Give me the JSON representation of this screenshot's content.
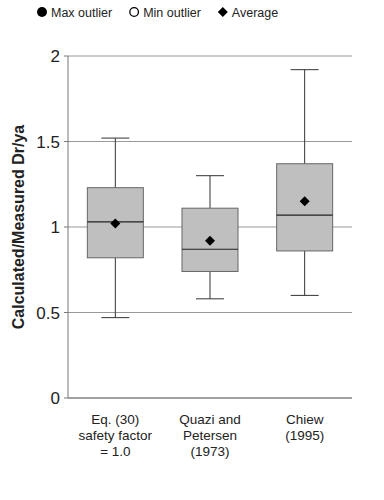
{
  "chart_data": {
    "type": "box",
    "y_label": "Calculated/Measured Dr/ya",
    "categories": [
      "Eq. (30)\nsafety factor\n= 1.0",
      "Quazi and\nPetersen\n(1973)",
      "Chiew\n(1995)"
    ],
    "boxes": {
      "whisker_high": [
        1.52,
        1.3,
        1.92
      ],
      "q3": [
        1.23,
        1.11,
        1.37
      ],
      "median": [
        1.03,
        0.87,
        1.07
      ],
      "q1": [
        0.82,
        0.74,
        0.86
      ],
      "whisker_low": [
        0.47,
        0.58,
        0.6
      ]
    },
    "series": [
      {
        "name": "Max outlier",
        "marker": "circle",
        "color": "#000000",
        "values": [
          null,
          null,
          null
        ]
      },
      {
        "name": "Min outlier",
        "marker": "open-circle",
        "color": "#000000",
        "values": [
          null,
          null,
          null
        ]
      },
      {
        "name": "Average",
        "marker": "diamond",
        "color": "#000000",
        "values": [
          1.02,
          0.92,
          1.15
        ]
      }
    ],
    "color": "#bfbfbf",
    "ylim": [
      0,
      2
    ],
    "yticks": [
      0,
      0.5,
      1,
      1.5,
      2
    ],
    "grid": true,
    "legend": "top"
  }
}
